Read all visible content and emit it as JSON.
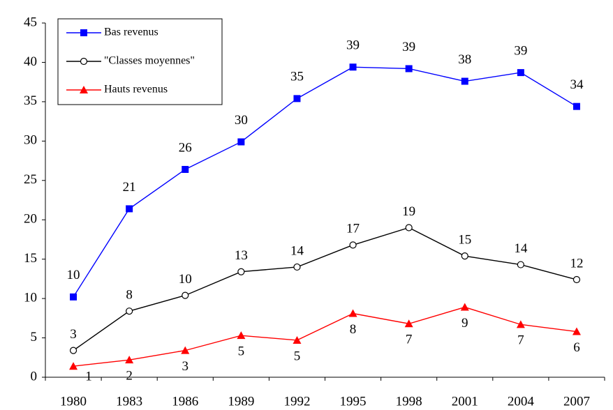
{
  "chart_data": {
    "type": "line",
    "categories": [
      "1980",
      "1983",
      "1986",
      "1989",
      "1992",
      "1995",
      "1998",
      "2001",
      "2004",
      "2007"
    ],
    "series": [
      {
        "name": "Bas revenus",
        "color": "#0000ff",
        "marker": "square",
        "values": [
          10.2,
          21.4,
          26.4,
          29.9,
          35.4,
          39.4,
          39.2,
          37.6,
          38.7,
          34.4
        ],
        "value_labels": [
          "10",
          "21",
          "26",
          "30",
          "35",
          "39",
          "39",
          "38",
          "39",
          "34"
        ]
      },
      {
        "name": "\"Classes moyennes\"",
        "color": "#000000",
        "marker": "circle",
        "values": [
          3.4,
          8.4,
          10.4,
          13.4,
          14.0,
          16.8,
          19.0,
          15.4,
          14.3,
          12.4
        ],
        "value_labels": [
          "3",
          "8",
          "10",
          "13",
          "14",
          "17",
          "19",
          "15",
          "14",
          "12"
        ]
      },
      {
        "name": "Hauts revenus",
        "color": "#ff0000",
        "marker": "triangle",
        "values": [
          1.4,
          2.2,
          3.4,
          5.3,
          4.7,
          8.1,
          6.8,
          8.9,
          6.7,
          5.8
        ],
        "value_labels": [
          "1",
          "2",
          "3",
          "5",
          "5",
          "8",
          "7",
          "9",
          "7",
          "6"
        ]
      }
    ],
    "ylim": [
      0,
      45
    ],
    "yticks": [
      0,
      5,
      10,
      15,
      20,
      25,
      30,
      35,
      40,
      45
    ],
    "grid": false,
    "legend": "upper left"
  }
}
